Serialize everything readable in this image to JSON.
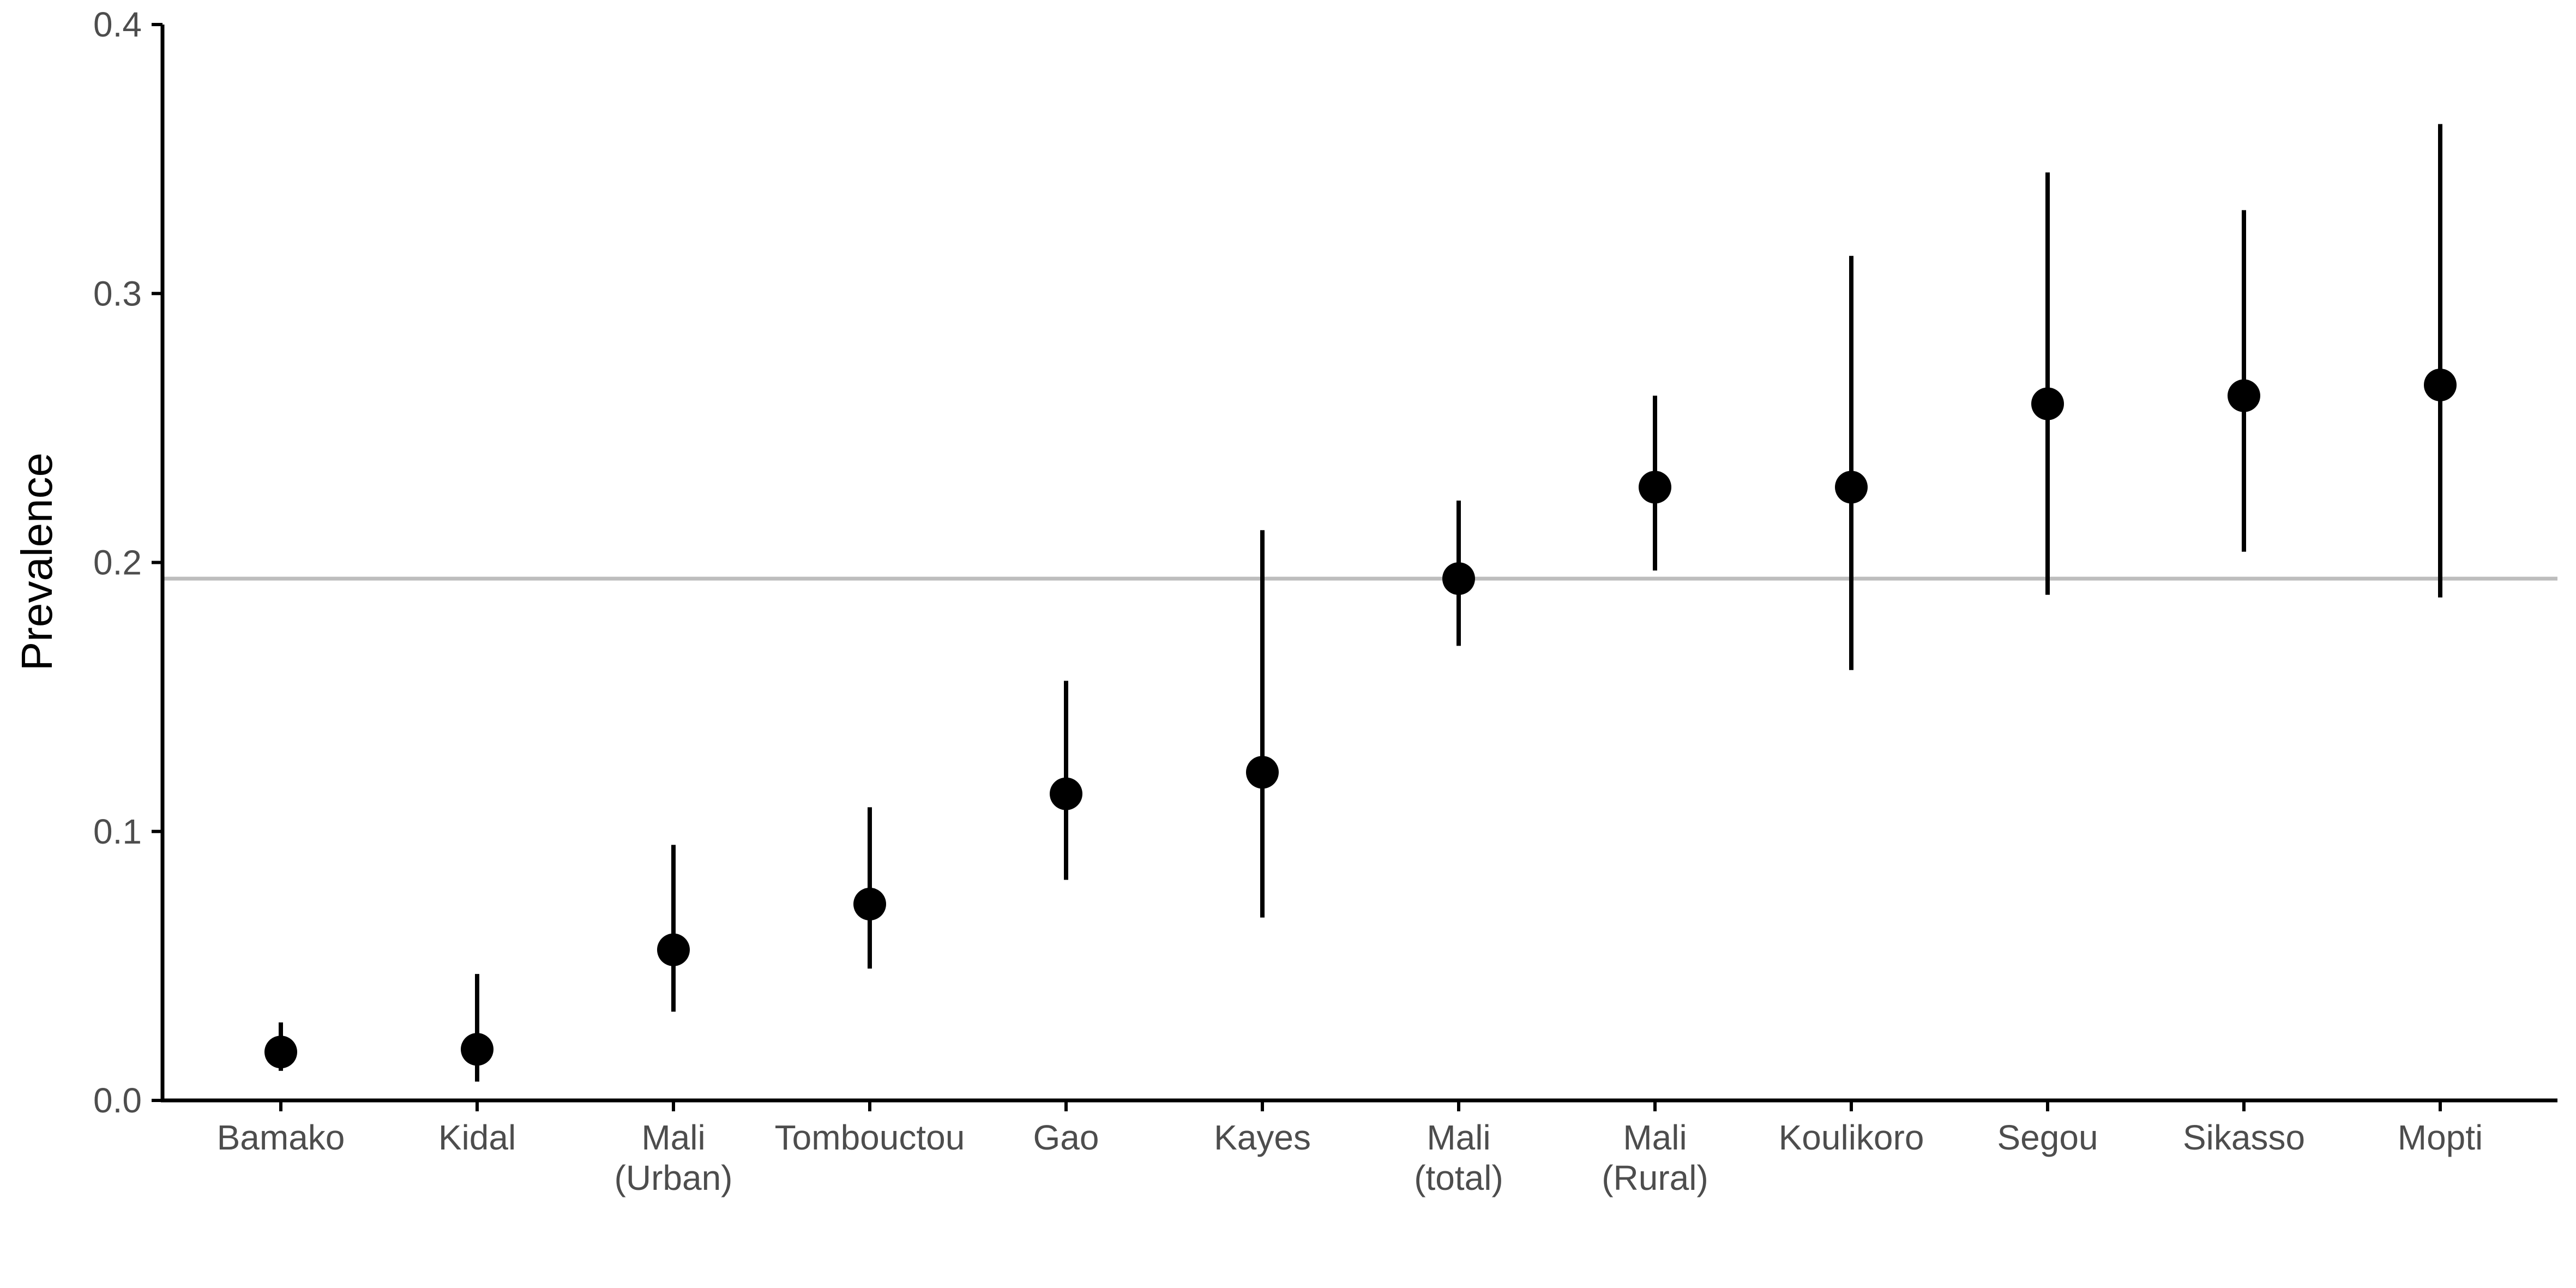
{
  "chart_data": {
    "type": "scatter",
    "title": "",
    "xlabel": "",
    "ylabel": "Prevalence",
    "ylim": [
      0,
      0.4
    ],
    "yticks": [
      "0.0",
      "0.1",
      "0.2",
      "0.3",
      "0.4"
    ],
    "grid": false,
    "legend": "none",
    "reference_line": {
      "y": 0.194,
      "color": "#bdbdbd"
    },
    "point_color": "#000000",
    "categories": [
      {
        "lines": [
          "Bamako"
        ],
        "value": 0.018,
        "lower": 0.011,
        "upper": 0.029
      },
      {
        "lines": [
          "Kidal"
        ],
        "value": 0.019,
        "lower": 0.007,
        "upper": 0.047
      },
      {
        "lines": [
          "Mali",
          "(Urban)"
        ],
        "value": 0.056,
        "lower": 0.033,
        "upper": 0.095
      },
      {
        "lines": [
          "Tombouctou"
        ],
        "value": 0.073,
        "lower": 0.049,
        "upper": 0.109
      },
      {
        "lines": [
          "Gao"
        ],
        "value": 0.114,
        "lower": 0.082,
        "upper": 0.156
      },
      {
        "lines": [
          "Kayes"
        ],
        "value": 0.122,
        "lower": 0.068,
        "upper": 0.212
      },
      {
        "lines": [
          "Mali",
          "(total)"
        ],
        "value": 0.194,
        "lower": 0.169,
        "upper": 0.223
      },
      {
        "lines": [
          "Mali",
          "(Rural)"
        ],
        "value": 0.228,
        "lower": 0.197,
        "upper": 0.262
      },
      {
        "lines": [
          "Koulikoro"
        ],
        "value": 0.228,
        "lower": 0.16,
        "upper": 0.314
      },
      {
        "lines": [
          "Segou"
        ],
        "value": 0.259,
        "lower": 0.188,
        "upper": 0.345
      },
      {
        "lines": [
          "Sikasso"
        ],
        "value": 0.262,
        "lower": 0.204,
        "upper": 0.331
      },
      {
        "lines": [
          "Mopti"
        ],
        "value": 0.266,
        "lower": 0.187,
        "upper": 0.363
      }
    ]
  }
}
